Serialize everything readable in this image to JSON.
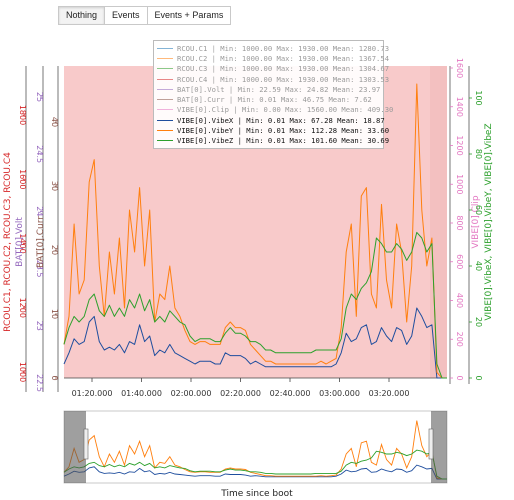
{
  "buttons": [
    "Nothing",
    "Events",
    "Events + Params"
  ],
  "legend": [
    {
      "label": "RCOU.C1 | Min: 1000.00    Max: 1930.00    Mean: 1280.73",
      "color": "#1f77b4",
      "faded": true
    },
    {
      "label": "RCOU.C2 | Min: 1000.00    Max: 1930.00    Mean: 1367.54",
      "color": "#ff7f0e",
      "faded": true
    },
    {
      "label": "RCOU.C3 | Min: 1000.00    Max: 1930.00    Mean: 1304.67",
      "color": "#2ca02c",
      "faded": true
    },
    {
      "label": "RCOU.C4 | Min: 1000.00    Max: 1930.00    Mean: 1303.53",
      "color": "#d62728",
      "faded": true
    },
    {
      "label": "BAT[0].Volt | Min: 22.59    Max: 24.82    Mean: 23.97",
      "color": "#9467bd",
      "faded": true
    },
    {
      "label": "BAT[0].Curr | Min: 0.01    Max: 46.75    Mean: 7.62",
      "color": "#8c564b",
      "faded": true
    },
    {
      "label": "VIBE[0].Clip | Min: 0.00    Max: 1560.00    Mean: 409.30",
      "color": "#e377c2",
      "faded": true
    },
    {
      "label": "VIBE[0].VibeX | Min: 0.01    Max: 67.28    Mean: 18.87",
      "color": "#1f4e9e",
      "faded": false
    },
    {
      "label": "VIBE[0].VibeY | Min: 0.01    Max: 112.28    Mean: 33.60",
      "color": "#ff7f0e",
      "faded": false
    },
    {
      "label": "VIBE[0].VibeZ | Min: 0.01    Max: 101.60    Mean: 30.69",
      "color": "#2ca02c",
      "faded": false
    }
  ],
  "chart_data": {
    "type": "line",
    "xlabel": "Time since boot",
    "x_ticks": [
      "01:20.000",
      "01:40.000",
      "02:00.000",
      "02:20.000",
      "02:40.000",
      "03:00.000",
      "03:20.000"
    ],
    "axes": {
      "rcou": {
        "title": "RCOU.C1, RCOU.C2, RCOU.C3, RCOU.C4",
        "ticks": [
          1000,
          1200,
          1400,
          1600,
          1800
        ],
        "color": "#d62728"
      },
      "volt": {
        "title": "BAT[0].Volt",
        "ticks": [
          22.5,
          23,
          23.5,
          24,
          24.5,
          25
        ],
        "color": "#9467bd"
      },
      "curr": {
        "title": "BAT[0].Curr",
        "ticks": [
          0,
          10,
          20,
          30,
          40
        ],
        "color": "#8c564b"
      },
      "clip": {
        "title": "VIBE[0].Clip",
        "ticks": [
          0,
          200,
          400,
          600,
          800,
          1000,
          1200,
          1400,
          1600
        ],
        "color": "#e377c2"
      },
      "vibe": {
        "title": "VIBE[0].VibeX, VIBE[0].VibeY, VIBE[0].VibeZ",
        "ticks": [
          0,
          20,
          40,
          60,
          80,
          100
        ],
        "color": "#2ca02c"
      }
    },
    "series": [
      {
        "name": "VIBE[0].VibeX",
        "color": "#1f4e9e",
        "y": [
          5,
          9,
          14,
          12,
          13,
          20,
          22,
          13,
          10,
          11,
          10,
          12,
          9,
          13,
          12,
          19,
          13,
          15,
          8,
          10,
          9,
          12,
          9,
          8,
          7,
          6,
          5,
          6,
          6,
          6,
          5,
          5,
          9,
          8,
          8,
          8,
          7,
          5,
          6,
          5,
          4,
          4,
          4,
          4,
          4,
          4,
          4,
          4,
          4,
          4,
          4,
          4,
          4,
          4,
          5,
          9,
          16,
          13,
          14,
          18,
          19,
          12,
          13,
          18,
          15,
          13,
          18,
          17,
          12,
          15,
          25,
          22,
          18,
          19,
          0,
          0,
          0
        ]
      },
      {
        "name": "VIBE[0].VibeY",
        "color": "#ff7f0e",
        "y": [
          12,
          22,
          55,
          30,
          35,
          70,
          78,
          40,
          22,
          45,
          30,
          50,
          25,
          60,
          45,
          68,
          40,
          60,
          20,
          30,
          28,
          40,
          25,
          22,
          17,
          13,
          12,
          13,
          13,
          12,
          12,
          12,
          18,
          20,
          18,
          18,
          17,
          12,
          10,
          8,
          6,
          6,
          5,
          5,
          5,
          5,
          5,
          5,
          5,
          5,
          5,
          6,
          5,
          6,
          7,
          18,
          45,
          55,
          22,
          65,
          68,
          30,
          25,
          62,
          35,
          25,
          55,
          45,
          20,
          40,
          105,
          60,
          40,
          50,
          2,
          0,
          0
        ]
      },
      {
        "name": "VIBE[0].VibeZ",
        "color": "#2ca02c",
        "y": [
          12,
          18,
          22,
          20,
          22,
          28,
          30,
          24,
          22,
          26,
          22,
          25,
          22,
          28,
          25,
          30,
          24,
          28,
          20,
          22,
          20,
          24,
          22,
          20,
          19,
          15,
          13,
          14,
          14,
          14,
          13,
          13,
          16,
          18,
          16,
          16,
          15,
          13,
          13,
          12,
          10,
          10,
          9,
          9,
          9,
          9,
          9,
          9,
          9,
          9,
          10,
          10,
          10,
          10,
          10,
          14,
          25,
          30,
          28,
          32,
          34,
          38,
          50,
          48,
          45,
          45,
          48,
          46,
          42,
          45,
          52,
          50,
          45,
          48,
          5,
          0,
          0
        ]
      }
    ],
    "background": "#f8caca",
    "grid": false
  },
  "xtitle": "Time since boot"
}
